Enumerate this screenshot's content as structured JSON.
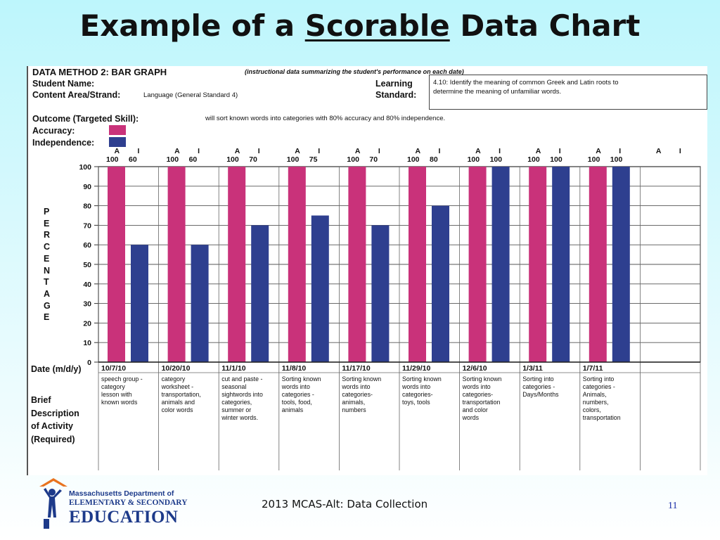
{
  "slide": {
    "title_pre": "Example of a ",
    "title_emph": "Scorable",
    "title_post": " Data Chart",
    "footer_title": "2013 MCAS-Alt: Data Collection",
    "page_number": "11"
  },
  "logo": {
    "line1": "Massachusetts Department of",
    "line2": "ELEMENTARY & SECONDARY",
    "line3": "EDUCATION"
  },
  "sheet": {
    "method_title": "DATA METHOD 2: BAR GRAPH",
    "method_note": "(instructional data summarizing the student's performance on each date)",
    "student_name_label": "Student Name:",
    "content_area_label": "Content Area/Strand:",
    "content_area_value": "Language (General Standard 4)",
    "learning_label": "Learning",
    "standard_label": "Standard:",
    "standard_value_1": "4.10: Identify the meaning of common Greek and Latin roots to",
    "standard_value_2": "determine the meaning of unfamiliar words.",
    "outcome_label": "Outcome (Targeted Skill):",
    "outcome_value": "will sort known words into categories with 80% accuracy and 80% independence.",
    "accuracy_label": "Accuracy:",
    "independence_label": "Independence:",
    "percentage_letters": [
      "P",
      "E",
      "R",
      "C",
      "E",
      "N",
      "T",
      "A",
      "G",
      "E"
    ],
    "date_label": "Date (m/d/y)",
    "brief_lines": [
      "Brief",
      "Description",
      "of Activity",
      "(Required)"
    ],
    "col_head_a": "A",
    "col_head_i": "I"
  },
  "colors": {
    "accuracy": "#c9327a",
    "independence": "#2e3f8f",
    "title_text": "#111111",
    "logo_blue": "#1d3a8a",
    "logo_orange": "#e8731f",
    "page_num": "#1a2ea8"
  },
  "chart_data": {
    "type": "bar",
    "categories": [
      "10/7/10",
      "10/20/10",
      "11/1/10",
      "11/8/10",
      "11/17/10",
      "11/29/10",
      "12/6/10",
      "1/3/11",
      "1/7/11",
      ""
    ],
    "series": [
      {
        "name": "Accuracy",
        "values": [
          100,
          100,
          100,
          100,
          100,
          100,
          100,
          100,
          100,
          null
        ]
      },
      {
        "name": "Independence",
        "values": [
          60,
          60,
          70,
          75,
          70,
          80,
          100,
          100,
          100,
          null
        ]
      }
    ],
    "value_labels": [
      [
        "100",
        "60"
      ],
      [
        "100",
        "60"
      ],
      [
        "100",
        "70"
      ],
      [
        "100",
        "75"
      ],
      [
        "100",
        "70"
      ],
      [
        "100",
        "80"
      ],
      [
        "100",
        "100"
      ],
      [
        "100",
        "100"
      ],
      [
        "100",
        "100"
      ],
      [
        "",
        ""
      ]
    ],
    "descriptions": [
      [
        "speech group -",
        "category",
        "lesson with",
        "known words"
      ],
      [
        "category",
        "worksheet -",
        "transportation,",
        "animals and",
        "color words"
      ],
      [
        "cut and paste -",
        "seasonal",
        "sightwords into",
        "categories,",
        "summer or",
        "winter words."
      ],
      [
        "Sorting known",
        "words into",
        "categories -",
        "tools, food,",
        "animals"
      ],
      [
        "Sorting known",
        "words into",
        "categories-",
        "animals,",
        "numbers"
      ],
      [
        "Sorting known",
        "words into",
        "categories-",
        "toys, tools"
      ],
      [
        "Sorting known",
        "words into",
        "categories-",
        "transportation",
        "and color",
        "words"
      ],
      [
        "Sorting into",
        "categories -",
        "Days/Months"
      ],
      [
        "Sorting into",
        "categories -",
        "Animals,",
        "numbers,",
        "colors,",
        "transportation"
      ],
      []
    ],
    "ylabel": "PERCENTAGE",
    "xlabel": "Date (m/d/y)",
    "ylim": [
      0,
      100
    ],
    "yticks": [
      "0",
      "10",
      "20",
      "30",
      "40",
      "50",
      "60",
      "70",
      "80",
      "90",
      "100"
    ],
    "grid": true,
    "legend": "top-left"
  }
}
